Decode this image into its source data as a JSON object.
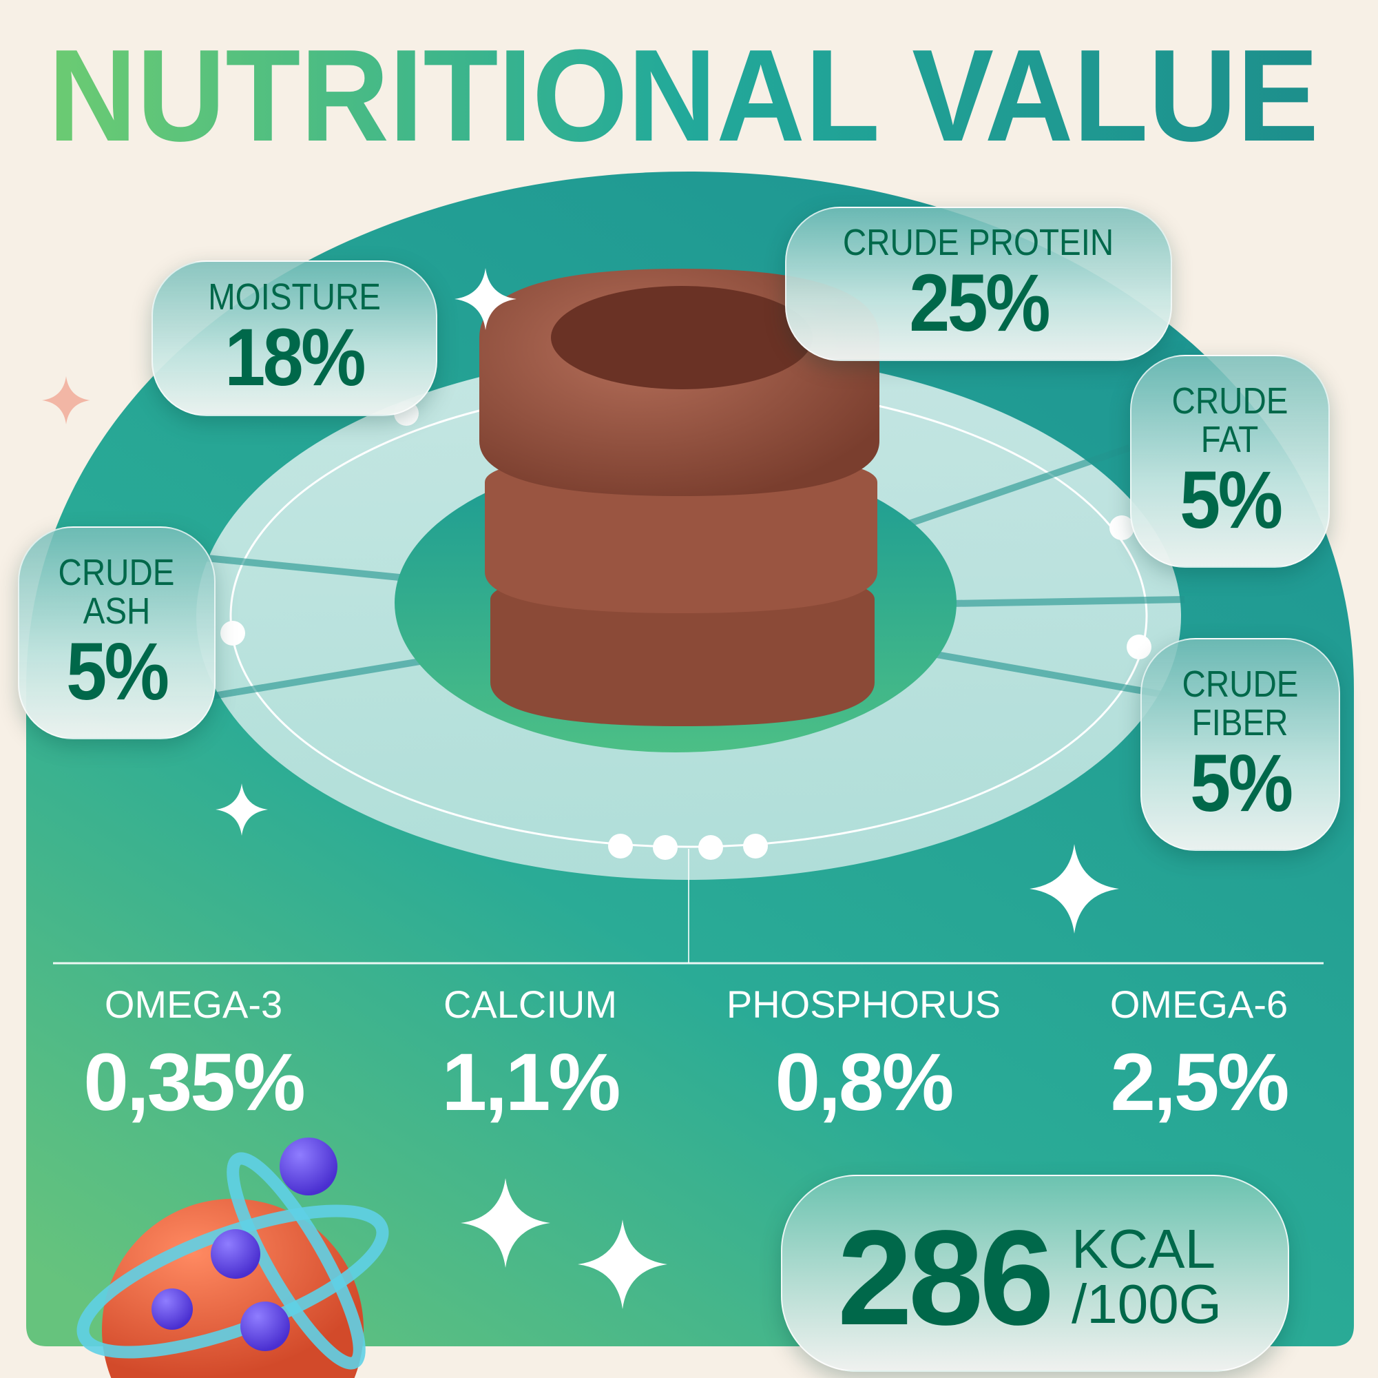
{
  "title": "NUTRITIONAL VALUE",
  "colors": {
    "title_start": "#6ccb72",
    "title_end": "#1d8f8c",
    "panel_top": "#1f9896",
    "panel_bottom": "#55bd85",
    "text_dark": "#00684a",
    "background": "#f7f0e6"
  },
  "cards": [
    {
      "id": "moisture",
      "label": [
        "MOISTURE"
      ],
      "value": "18%"
    },
    {
      "id": "crude-protein",
      "label": [
        "CRUDE PROTEIN"
      ],
      "value": "25%"
    },
    {
      "id": "crude-fat",
      "label": [
        "CRUDE",
        "FAT"
      ],
      "value": "5%"
    },
    {
      "id": "crude-ash",
      "label": [
        "CRUDE",
        "ASH"
      ],
      "value": "5%"
    },
    {
      "id": "crude-fiber",
      "label": [
        "CRUDE",
        "FIBER"
      ],
      "value": "5%"
    }
  ],
  "stats": [
    {
      "label": "OMEGA-3",
      "value": "0,35%"
    },
    {
      "label": "CALCIUM",
      "value": "1,1%"
    },
    {
      "label": "PHOSPHORUS",
      "value": "0,8%"
    },
    {
      "label": "OMEGA-6",
      "value": "2,5%"
    }
  ],
  "energy": {
    "value": "286",
    "unit_line1": "KCAL",
    "unit_line2": "/100G"
  },
  "icons": [
    "sparkle-icon",
    "atom-icon",
    "food-product-image"
  ]
}
